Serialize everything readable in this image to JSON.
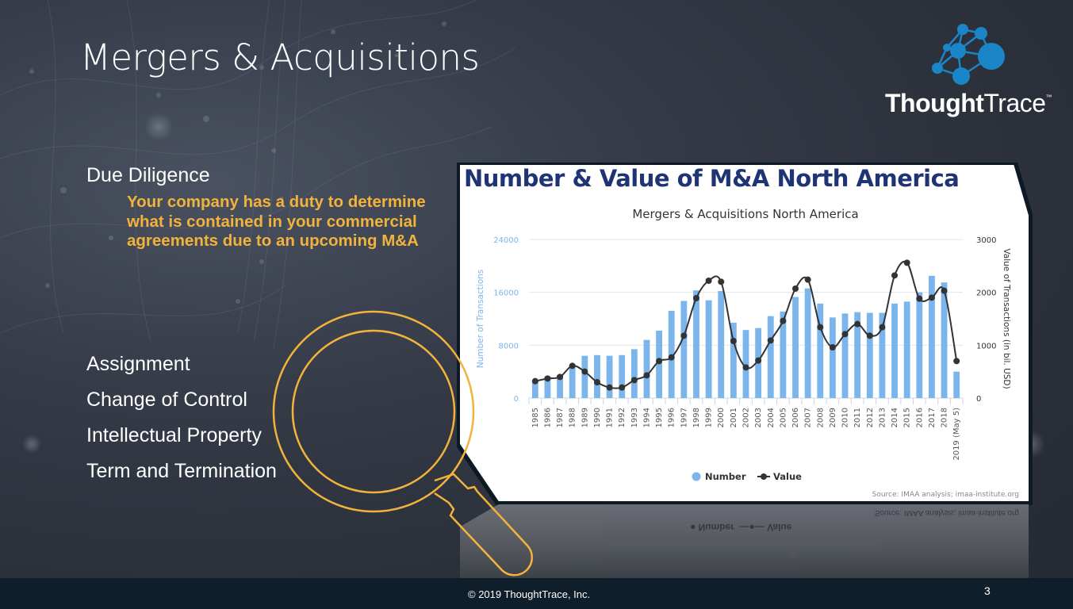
{
  "slide": {
    "title": "Mergers & Acquisitions",
    "page_number": "3",
    "footer_text": "© 2019 ThoughtTrace, Inc."
  },
  "logo": {
    "brand_bold": "Thought",
    "brand_light": "Trace",
    "trademark": "™",
    "icon": "network-nodes-icon",
    "color": "#1a86c8"
  },
  "content": {
    "primary_item": "Due Diligence",
    "primary_description": "Your company has a duty to determine what is contained in your commercial agreements due to an upcoming M&A",
    "items": [
      "Assignment",
      "Change of Control",
      "Intellectual Property",
      "Term and Termination"
    ]
  },
  "colors": {
    "accent_gold": "#f2b33c",
    "bar_blue": "#7cb5ec",
    "line_dark": "#333333",
    "heading_navy": "#1f3474",
    "footer_bg": "#0f1e2b"
  },
  "chart_data": {
    "type": "bar",
    "heading": "Number & Value of M&A North America",
    "title": "Mergers & Acquisitions North America",
    "xlabel": "",
    "ylabel": "Number of Transactions",
    "ylabel_right": "Value of Transactions (in bil. USD)",
    "ylim": [
      0,
      24000
    ],
    "ylim_right": [
      0,
      3000
    ],
    "yticks": [
      "0",
      "8000",
      "16000",
      "24000"
    ],
    "yticks_right": [
      "0",
      "1000",
      "2000",
      "3000"
    ],
    "grid": true,
    "legend_position": "bottom",
    "legend": [
      {
        "label": "Number",
        "symbol": "circle",
        "color": "#7cb5ec"
      },
      {
        "label": "Value",
        "symbol": "line-marker",
        "color": "#333333"
      }
    ],
    "source": "Source: IMAA analysis; imaa-institute.org",
    "categories": [
      "1985",
      "1986",
      "1987",
      "1988",
      "1989",
      "1990",
      "1991",
      "1992",
      "1993",
      "1994",
      "1995",
      "1996",
      "1997",
      "1998",
      "1999",
      "2000",
      "2001",
      "2002",
      "2003",
      "2004",
      "2005",
      "2006",
      "2007",
      "2008",
      "2009",
      "2010",
      "2011",
      "2012",
      "2013",
      "2014",
      "2015",
      "2016",
      "2017",
      "2018",
      "2019 (May 5)"
    ],
    "series": [
      {
        "name": "Number",
        "type": "bar",
        "axis": "left",
        "values": [
          2600,
          3300,
          3500,
          4800,
          6400,
          6500,
          6400,
          6500,
          7400,
          8800,
          10200,
          13200,
          14700,
          16300,
          14800,
          16200,
          11400,
          10300,
          10600,
          12400,
          13100,
          15300,
          16600,
          14300,
          12200,
          12800,
          13000,
          12900,
          12900,
          14300,
          14600,
          16000,
          18500,
          17500,
          4000
        ]
      },
      {
        "name": "Value",
        "type": "line",
        "axis": "right",
        "values": [
          320,
          370,
          400,
          610,
          500,
          300,
          200,
          200,
          340,
          430,
          700,
          770,
          1180,
          1890,
          2220,
          2200,
          1080,
          580,
          710,
          1090,
          1460,
          2070,
          2240,
          1340,
          960,
          1210,
          1400,
          1180,
          1340,
          2320,
          2560,
          1880,
          1900,
          2030,
          700
        ]
      }
    ]
  }
}
